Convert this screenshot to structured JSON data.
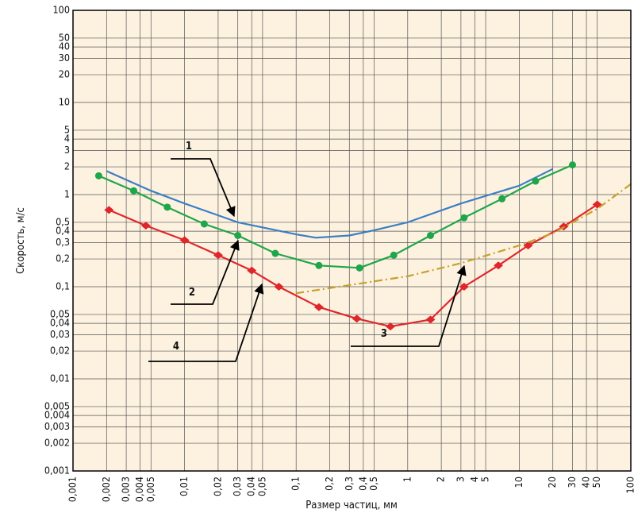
{
  "chart_data": {
    "type": "line",
    "x_label": "Размер частиц, мм",
    "y_label": "Скорость, м/с",
    "xscale": "log",
    "yscale": "log",
    "grid": true,
    "xlim": [
      0.001,
      100
    ],
    "ylim": [
      0.001,
      100
    ],
    "xticks": [
      {
        "value": 0.001,
        "label": "0,001"
      },
      {
        "value": 0.002,
        "label": "0,002"
      },
      {
        "value": 0.003,
        "label": "0,003"
      },
      {
        "value": 0.004,
        "label": "0,004"
      },
      {
        "value": 0.005,
        "label": "0,005"
      },
      {
        "value": 0.01,
        "label": "0,01"
      },
      {
        "value": 0.02,
        "label": "0,02"
      },
      {
        "value": 0.03,
        "label": "0,03"
      },
      {
        "value": 0.04,
        "label": "0,04"
      },
      {
        "value": 0.05,
        "label": "0,05"
      },
      {
        "value": 0.1,
        "label": "0,1"
      },
      {
        "value": 0.2,
        "label": "0,2"
      },
      {
        "value": 0.3,
        "label": "0,3"
      },
      {
        "value": 0.4,
        "label": "0,4"
      },
      {
        "value": 0.5,
        "label": "0,5"
      },
      1,
      2,
      3,
      4,
      5,
      10,
      20,
      30,
      40,
      50,
      100
    ],
    "yticks": [
      {
        "value": 0.001,
        "label": "0,001"
      },
      {
        "value": 0.002,
        "label": "0,002"
      },
      {
        "value": 0.003,
        "label": "0,003"
      },
      {
        "value": 0.004,
        "label": "0,004"
      },
      {
        "value": 0.005,
        "label": "0,005"
      },
      {
        "value": 0.01,
        "label": "0,01"
      },
      {
        "value": 0.02,
        "label": "0,02"
      },
      {
        "value": 0.03,
        "label": "0,03"
      },
      {
        "value": 0.04,
        "label": "0,04"
      },
      {
        "value": 0.05,
        "label": "0,05"
      },
      {
        "value": 0.1,
        "label": "0,1"
      },
      {
        "value": 0.2,
        "label": "0,2"
      },
      {
        "value": 0.3,
        "label": "0,3"
      },
      {
        "value": 0.4,
        "label": "0,4"
      },
      {
        "value": 0.5,
        "label": "0,5"
      },
      1,
      2,
      3,
      4,
      5,
      10,
      20,
      30,
      40,
      50,
      100
    ],
    "series": [
      {
        "color": "#3b7fc4",
        "marker": "none",
        "dash": "solid",
        "x": [
          0.002,
          0.005,
          0.01,
          0.03,
          0.1,
          0.15,
          0.3,
          0.5,
          1,
          3,
          10,
          20
        ],
        "values": [
          1.8,
          1.1,
          0.8,
          0.5,
          0.37,
          0.34,
          0.36,
          0.41,
          0.5,
          0.8,
          1.25,
          1.9
        ]
      },
      {
        "color": "#1fa64a",
        "marker": "circle",
        "dash": "solid",
        "x": [
          0.0017,
          0.0035,
          0.007,
          0.015,
          0.03,
          0.065,
          0.16,
          0.37,
          0.75,
          1.6,
          3.2,
          7,
          14,
          30
        ],
        "values": [
          1.6,
          1.1,
          0.73,
          0.48,
          0.36,
          0.23,
          0.17,
          0.16,
          0.22,
          0.36,
          0.56,
          0.9,
          1.4,
          2.1
        ]
      },
      {
        "color": "#e0262b",
        "marker": "diamond",
        "dash": "solid",
        "x": [
          0.0021,
          0.0045,
          0.01,
          0.02,
          0.04,
          0.07,
          0.16,
          0.35,
          0.7,
          1.6,
          3.2,
          6.5,
          12,
          25,
          50
        ],
        "values": [
          0.68,
          0.46,
          0.32,
          0.22,
          0.15,
          0.1,
          0.06,
          0.045,
          0.037,
          0.044,
          0.1,
          0.17,
          0.28,
          0.45,
          0.78
        ]
      },
      {
        "color": "#c8a02a",
        "marker": "none",
        "dash": "dashdot",
        "x": [
          0.1,
          1,
          3,
          10,
          20,
          50,
          100
        ],
        "values": [
          0.085,
          0.13,
          0.18,
          0.28,
          0.38,
          0.7,
          1.3
        ]
      }
    ],
    "annotations": [
      "1",
      "2",
      "3",
      "4"
    ]
  }
}
